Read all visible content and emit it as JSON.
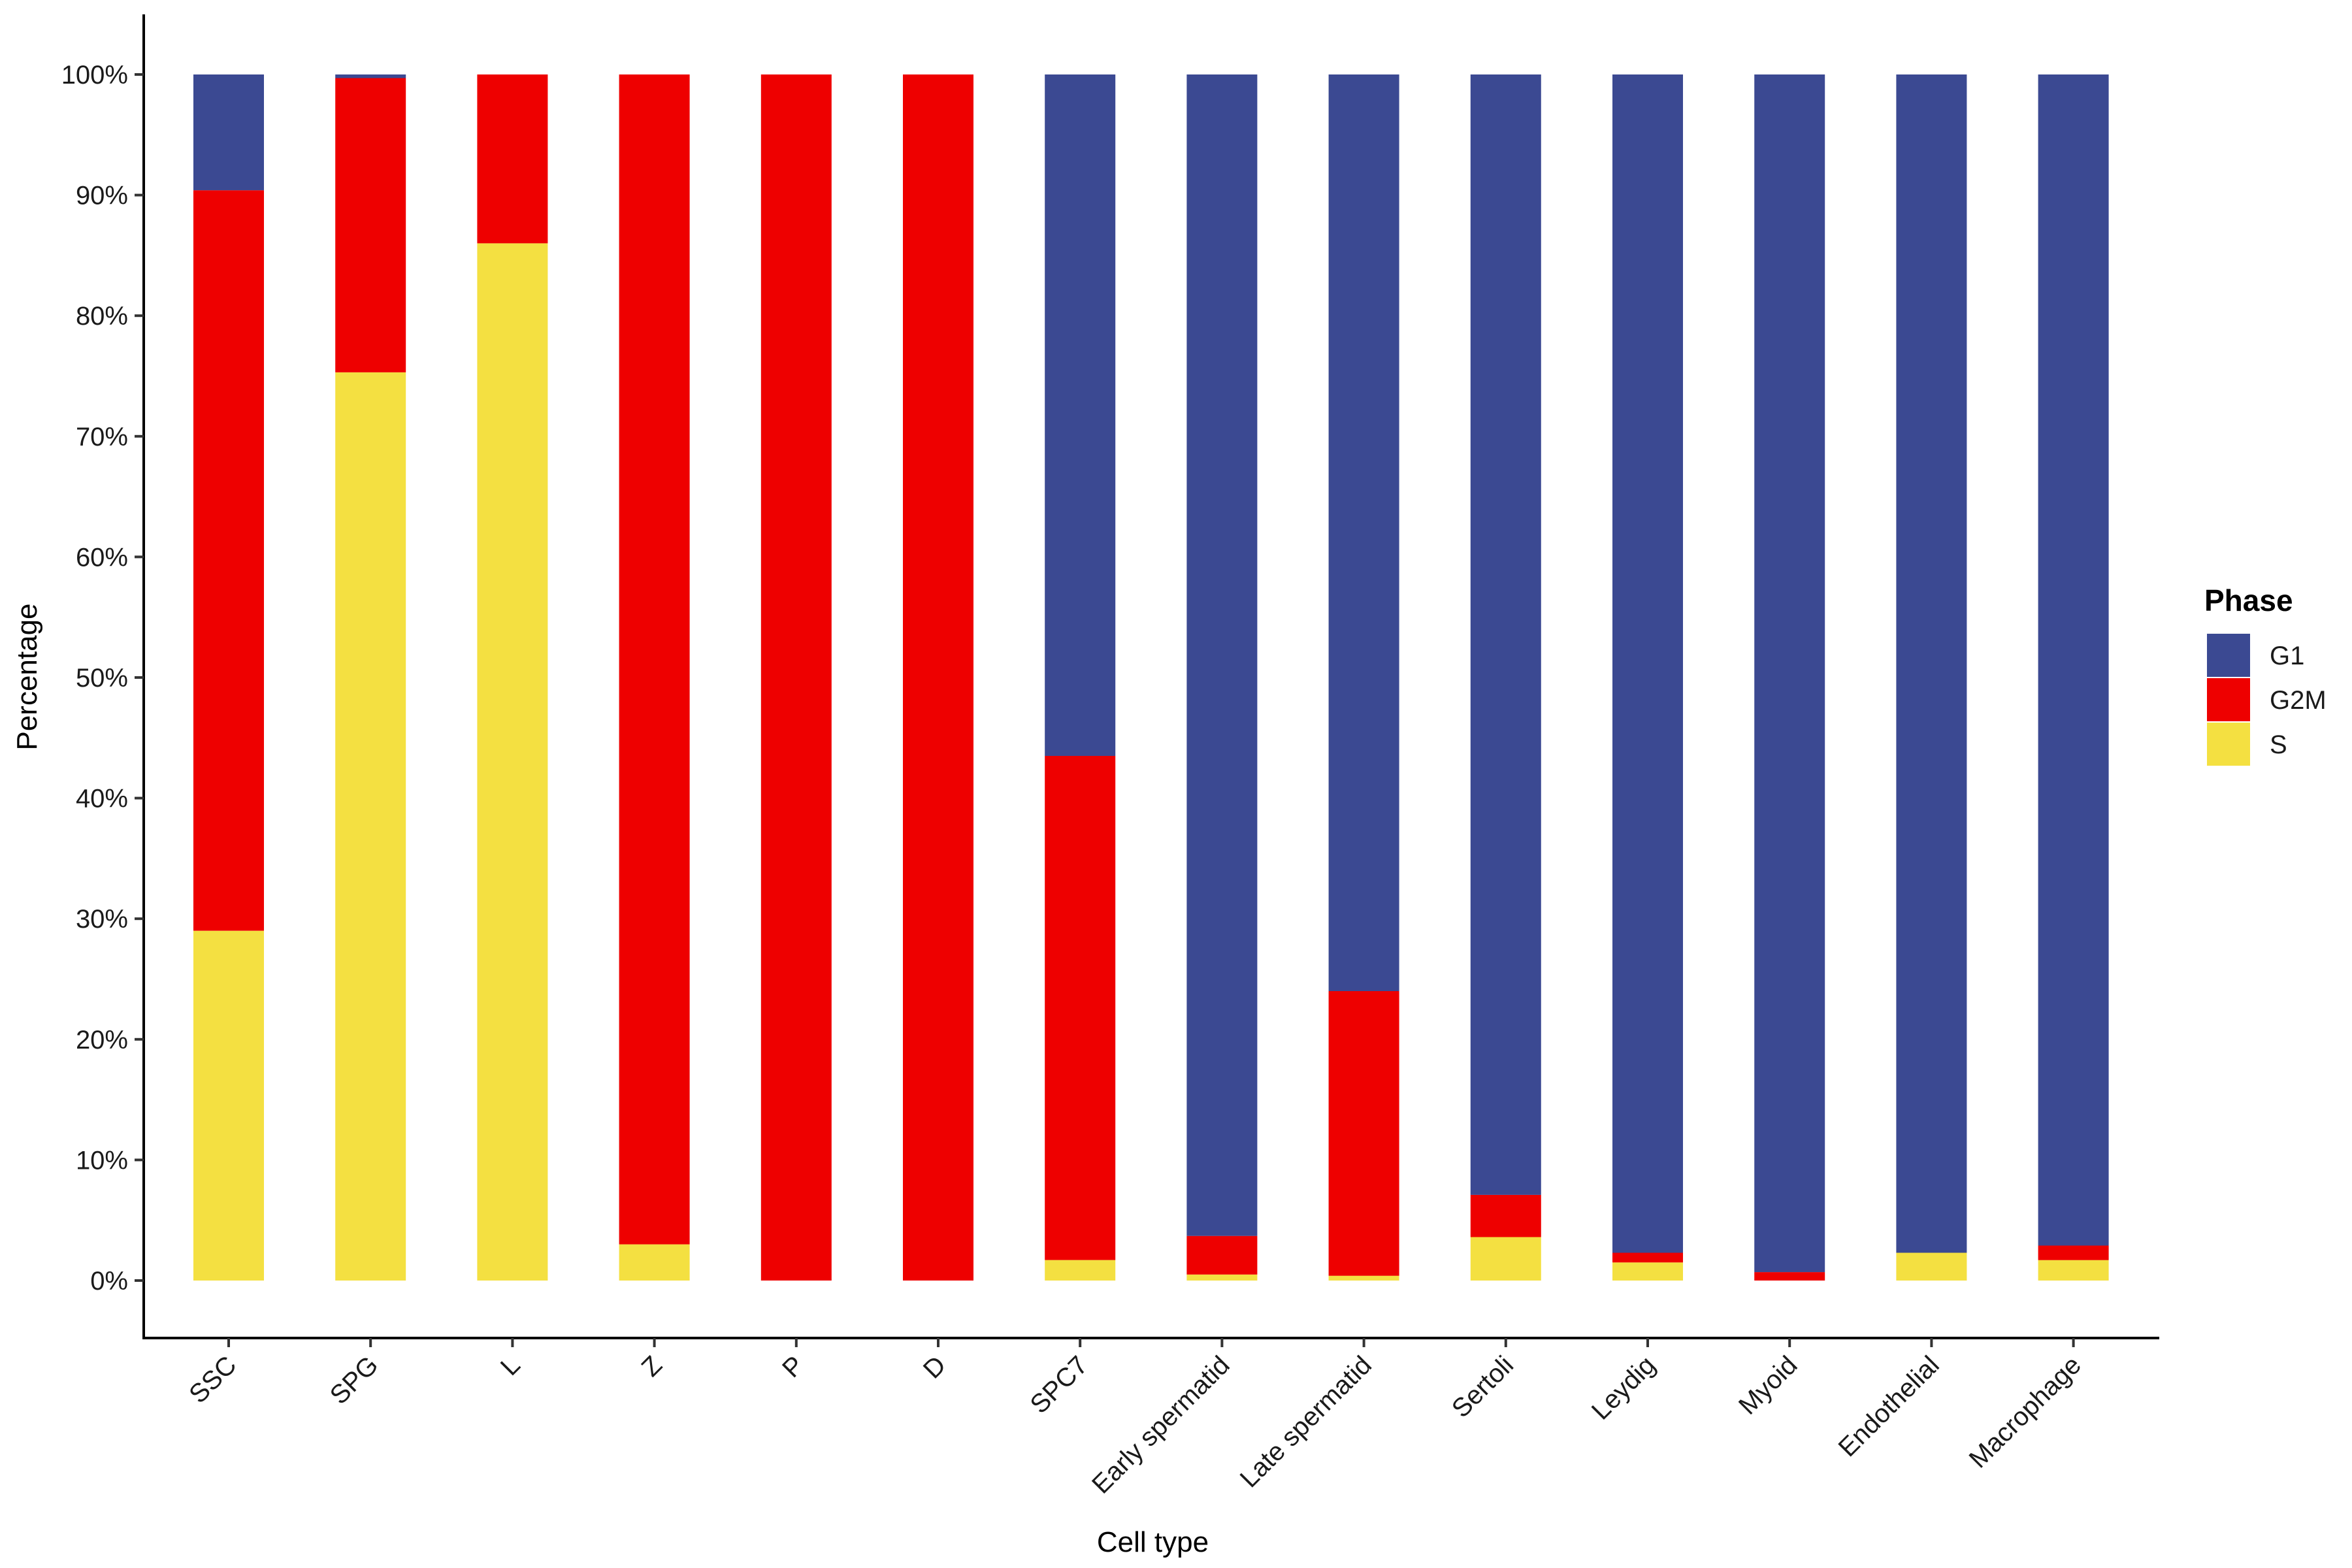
{
  "chart_data": {
    "type": "bar",
    "stacked": true,
    "xlabel": "Cell type",
    "ylabel": "Percentage",
    "ylim": [
      -5,
      105
    ],
    "yticks": [
      0,
      10,
      20,
      30,
      40,
      50,
      60,
      70,
      80,
      90,
      100
    ],
    "ytick_labels": [
      "0%",
      "10%",
      "20%",
      "30%",
      "40%",
      "50%",
      "60%",
      "70%",
      "80%",
      "90%",
      "100%"
    ],
    "categories": [
      "SSC",
      "SPG",
      "L",
      "Z",
      "P",
      "D",
      "SPC7",
      "Early spermatid",
      "Late spermatid",
      "Sertoli",
      "Leydig",
      "Myoid",
      "Endothelial",
      "Macrophage"
    ],
    "series": [
      {
        "name": "S",
        "color": "#F4E041",
        "values": [
          29.0,
          75.3,
          86.0,
          3.0,
          0.0,
          0.0,
          1.7,
          0.5,
          0.4,
          3.6,
          1.5,
          0.0,
          2.3,
          1.7
        ]
      },
      {
        "name": "G2M",
        "color": "#EE0000",
        "values": [
          61.4,
          24.4,
          14.0,
          97.0,
          100.0,
          100.0,
          41.8,
          3.2,
          23.6,
          3.5,
          0.8,
          0.7,
          0.0,
          1.2
        ]
      },
      {
        "name": "G1",
        "color": "#3B4992",
        "values": [
          9.6,
          0.3,
          0.0,
          0.0,
          0.0,
          0.0,
          56.5,
          96.3,
          76.0,
          92.9,
          97.7,
          99.3,
          97.7,
          97.1
        ]
      }
    ],
    "legend": {
      "title": "Phase",
      "position": "right",
      "entries": [
        {
          "name": "G1",
          "color": "#3B4992"
        },
        {
          "name": "G2M",
          "color": "#EE0000"
        },
        {
          "name": "S",
          "color": "#F4E041"
        }
      ]
    },
    "grid": false
  }
}
